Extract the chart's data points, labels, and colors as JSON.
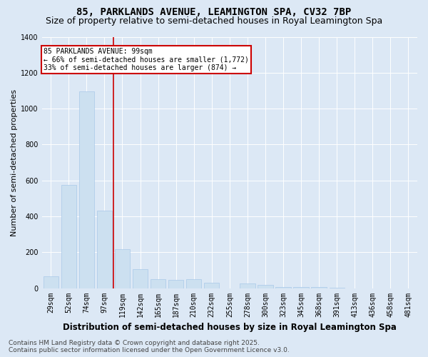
{
  "title": "85, PARKLANDS AVENUE, LEAMINGTON SPA, CV32 7BP",
  "subtitle": "Size of property relative to semi-detached houses in Royal Leamington Spa",
  "xlabel": "Distribution of semi-detached houses by size in Royal Leamington Spa",
  "ylabel": "Number of semi-detached properties",
  "footnote": "Contains HM Land Registry data © Crown copyright and database right 2025.\nContains public sector information licensed under the Open Government Licence v3.0.",
  "categories": [
    "29sqm",
    "52sqm",
    "74sqm",
    "97sqm",
    "119sqm",
    "142sqm",
    "165sqm",
    "187sqm",
    "210sqm",
    "232sqm",
    "255sqm",
    "278sqm",
    "300sqm",
    "323sqm",
    "345sqm",
    "368sqm",
    "391sqm",
    "413sqm",
    "436sqm",
    "458sqm",
    "481sqm"
  ],
  "values": [
    65,
    575,
    1095,
    430,
    215,
    105,
    50,
    45,
    50,
    30,
    0,
    25,
    20,
    5,
    5,
    5,
    2,
    0,
    0,
    0,
    0
  ],
  "bar_color": "#cce0f0",
  "bar_edge_color": "#a8c8e8",
  "highlight_index": 3,
  "annotation_text": "85 PARKLANDS AVENUE: 99sqm\n← 66% of semi-detached houses are smaller (1,772)\n33% of semi-detached houses are larger (874) →",
  "annotation_box_color": "#ffffff",
  "annotation_box_edge_color": "#cc0000",
  "vline_color": "#cc0000",
  "ylim": [
    0,
    1400
  ],
  "yticks": [
    0,
    200,
    400,
    600,
    800,
    1000,
    1200,
    1400
  ],
  "bg_color": "#dce8f5",
  "plot_bg_color": "#dce8f5",
  "title_fontsize": 10,
  "subtitle_fontsize": 9,
  "xlabel_fontsize": 8.5,
  "ylabel_fontsize": 8,
  "tick_fontsize": 7,
  "footnote_fontsize": 6.5
}
